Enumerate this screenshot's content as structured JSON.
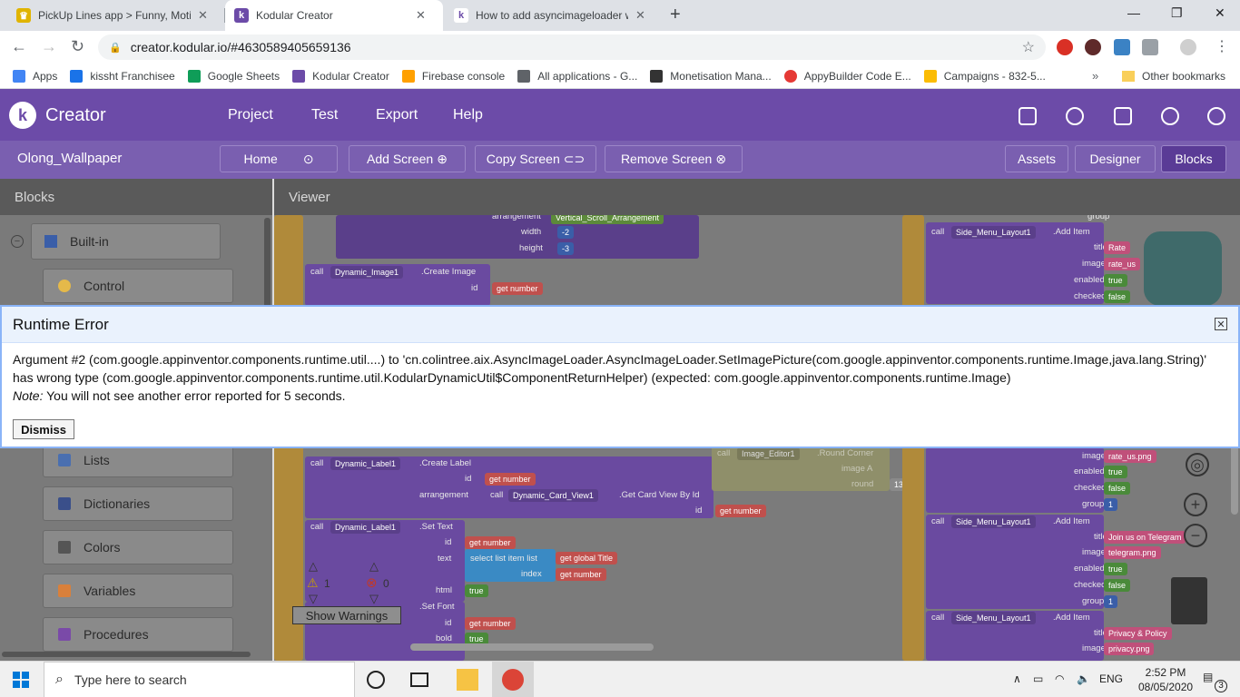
{
  "browser": {
    "tabs": [
      {
        "title": "PickUp Lines app > Funny, Motiv",
        "active": false
      },
      {
        "title": "Kodular Creator",
        "active": true
      },
      {
        "title": "How to add asyncimageloader w",
        "active": false
      }
    ],
    "url": "creator.kodular.io/#4630589405659136",
    "bookmarks": [
      {
        "label": "Apps",
        "color": "#4285f4"
      },
      {
        "label": "kissht Franchisee",
        "color": "#1a73e8"
      },
      {
        "label": "Google Sheets",
        "color": "#0f9d58"
      },
      {
        "label": "Kodular Creator",
        "color": "#6c4ba8"
      },
      {
        "label": "Firebase console",
        "color": "#ffa000"
      },
      {
        "label": "All applications - G...",
        "color": "#5f6368"
      },
      {
        "label": "Monetisation Mana...",
        "color": "#333333"
      },
      {
        "label": "AppyBuilder Code E...",
        "color": "#e53935"
      },
      {
        "label": "Campaigns - 832-5...",
        "color": "#fbbc04"
      }
    ],
    "more_bookmarks": "»",
    "other_bookmarks": "Other bookmarks"
  },
  "app": {
    "name": "Creator",
    "menu": [
      "Project",
      "Test",
      "Export",
      "Help"
    ]
  },
  "screenbar": {
    "project": "Olong_Wallpaper",
    "home": "Home",
    "add_screen": "Add Screen",
    "copy_screen": "Copy Screen",
    "remove_screen": "Remove Screen",
    "assets": "Assets",
    "designer": "Designer",
    "blocks": "Blocks"
  },
  "blocks_panel": {
    "title": "Blocks",
    "builtin": "Built-in",
    "categories": [
      {
        "label": "Control",
        "color": "#e5b94a"
      },
      {
        "label": "Lists",
        "color": "#4a6fb0"
      },
      {
        "label": "Dictionaries",
        "color": "#3a4f8a"
      },
      {
        "label": "Colors",
        "color": "#555555"
      },
      {
        "label": "Variables",
        "color": "#d9803b"
      },
      {
        "label": "Procedures",
        "color": "#7a4aa8"
      }
    ]
  },
  "viewer": {
    "title": "Viewer",
    "warnings_count": "1",
    "errors_count": "0",
    "show_warnings": "Show Warnings",
    "blocks": {
      "arrangement": "arrangement",
      "vertical_scroll": "Vertical_Scroll_Arrangement",
      "width": "width",
      "width_val": "-2",
      "height": "height",
      "height_val": "-3",
      "call": "call",
      "dyn_image": "Dynamic_Image1",
      "create_image": ".Create Image",
      "id": "id",
      "get": "get",
      "number": "number",
      "dyn_card": "Dynamic_Card_View1",
      "get_card": ".Get Card View By Id",
      "dyn_label": "Dynamic_Label1",
      "create_label": ".Create Label",
      "set_text": ".Set Text",
      "text": "text",
      "select_list": "select list item  list",
      "global_title": "global Title",
      "index": "index",
      "html": "html",
      "true": "true",
      "false": "false",
      "set_font": ".Set Font",
      "bold": "bold",
      "side_menu": "Side_Menu_Layout1",
      "add_item": ".Add Item",
      "title": "title",
      "image": "image",
      "enabled": "enabled",
      "checked": "checked",
      "group": "group",
      "group_val": "1",
      "rate": "Rate",
      "rate_us": "rate_us",
      "rate_us_png": "rate_us.png",
      "join": "Join us on Telegram",
      "telegram_png": "telegram.png",
      "privacy": "Privacy & Policy",
      "privacy_png": "privacy.png",
      "image_editor": "Image_Editor1",
      "round_corner": ".Round Corner",
      "image_a": "image A",
      "round": "round",
      "round_val": "13"
    }
  },
  "dialog": {
    "title": "Runtime Error",
    "message_line1": "Argument #2 (com.google.appinventor.components.runtime.util....) to 'cn.colintree.aix.AsyncImageLoader.AsyncImageLoader.SetImagePicture(com.google.appinventor.components.runtime.Image,java.lang.String)'",
    "message_line2": "has wrong type (com.google.appinventor.components.runtime.util.KodularDynamicUtil$ComponentReturnHelper) (expected: com.google.appinventor.components.runtime.Image)",
    "note_label": "Note:",
    "note_text": " You will not see another error reported for 5 seconds.",
    "dismiss": "Dismiss"
  },
  "taskbar": {
    "search_placeholder": "Type here to search",
    "language": "ENG",
    "time": "2:52 PM",
    "date": "08/05/2020",
    "notifications": "3"
  }
}
